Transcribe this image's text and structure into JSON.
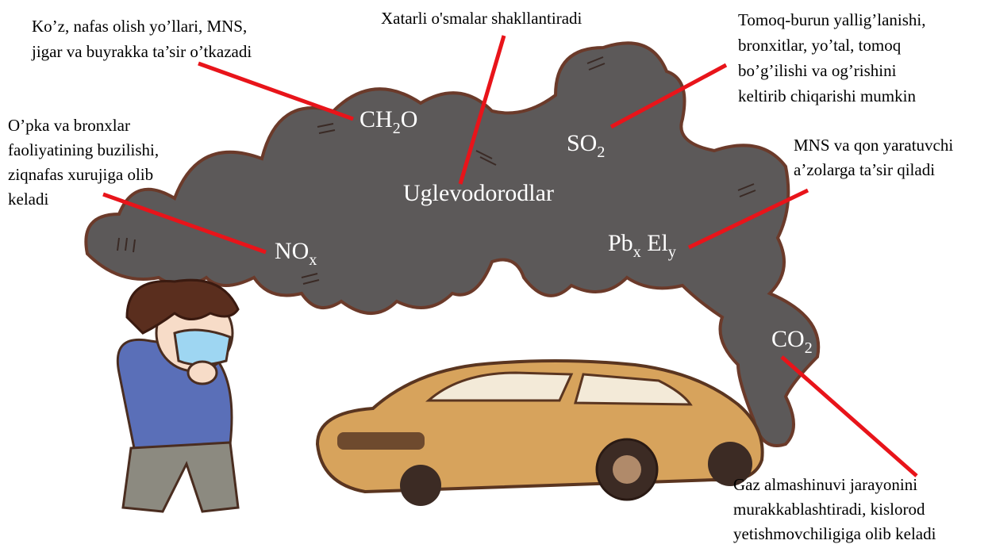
{
  "pollutants": [
    {
      "formula": [
        {
          "text": "CH"
        },
        {
          "sub": "2"
        },
        {
          "text": "O"
        }
      ],
      "effect": [
        "Ko’z, nafas olish yo’llari, MNS,",
        "jigar va buyrakka ta’sir o’tkazadi"
      ]
    },
    {
      "formula": [
        {
          "text": "Uglevodorodlar"
        }
      ],
      "effect": [
        "Xatarli o'smalar shakllantiradi"
      ]
    },
    {
      "formula": [
        {
          "text": "SO"
        },
        {
          "sub": "2"
        }
      ],
      "effect": [
        "Tomoq-burun yallig’lanishi,",
        "bronxitlar, yo’tal, tomoq",
        "bo’g’ilishi va og’rishini",
        "keltirib chiqarishi mumkin"
      ]
    },
    {
      "formula": [
        {
          "text": "NO"
        },
        {
          "sub": "x"
        }
      ],
      "effect": [
        "O’pka va bronxlar",
        "faoliyatining buzilishi,",
        "ziqnafas xurujiga olib",
        "keladi"
      ]
    },
    {
      "formula": [
        {
          "text": "Pb"
        },
        {
          "sub": "x"
        },
        {
          "text": " El"
        },
        {
          "sub": "y"
        }
      ],
      "effect": [
        "MNS va qon yaratuvchi",
        "a’zolarga ta’sir qiladi"
      ]
    },
    {
      "formula": [
        {
          "text": "CO"
        },
        {
          "sub": "2"
        }
      ],
      "effect": [
        "Gaz almashinuvi jarayonini",
        "murakkablashtiradi, kislorod",
        "yetishmovchiligiga olib keladi"
      ]
    }
  ]
}
